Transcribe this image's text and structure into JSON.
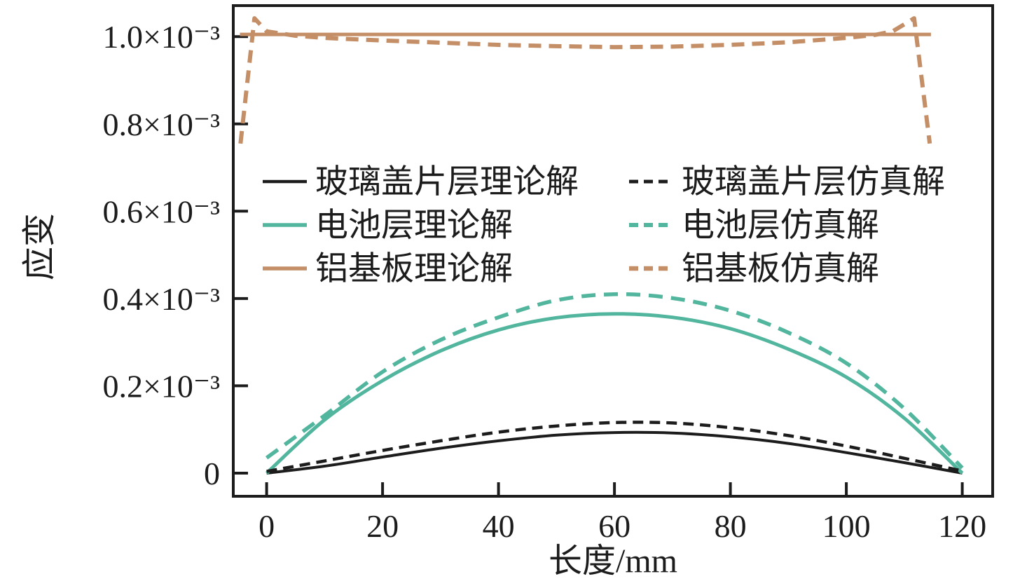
{
  "figure": {
    "background": "#ffffff"
  },
  "chart_data": {
    "type": "line",
    "title": "",
    "xlabel": "长度/mm",
    "ylabel": "应变",
    "grid": false,
    "legend_position": "inside upper-center, two columns",
    "y_value_scale": "values are strain in units of 1e-3",
    "xlim": [
      -5.75,
      125.25
    ],
    "ylim": [
      -0.053,
      1.071
    ],
    "x_ticks": [
      0,
      20,
      40,
      60,
      80,
      100,
      120
    ],
    "y_ticks": [
      {
        "value": 0.0,
        "label": "0"
      },
      {
        "value": 0.2,
        "label": "0.2×10⁻³"
      },
      {
        "value": 0.4,
        "label": "0.4×10⁻³"
      },
      {
        "value": 0.6,
        "label": "0.6×10⁻³"
      },
      {
        "value": 0.8,
        "label": "0.8×10⁻³"
      },
      {
        "value": 1.0,
        "label": "1.0×10⁻³"
      }
    ],
    "series": [
      {
        "id": "glass-theory",
        "label": "玻璃盖片层理论解",
        "color": "#1c1c1c",
        "line": "solid",
        "stroke_width": 4,
        "dasharray": null,
        "smooth": true,
        "points": [
          [
            0,
            0
          ],
          [
            10,
            0.016
          ],
          [
            20,
            0.037
          ],
          [
            30,
            0.057
          ],
          [
            40,
            0.074
          ],
          [
            50,
            0.087
          ],
          [
            60,
            0.093
          ],
          [
            70,
            0.092
          ],
          [
            80,
            0.083
          ],
          [
            90,
            0.068
          ],
          [
            100,
            0.047
          ],
          [
            110,
            0.024
          ],
          [
            120,
            0
          ]
        ]
      },
      {
        "id": "cell-theory",
        "label": "电池层理论解",
        "color": "#52b59d",
        "line": "solid",
        "stroke_width": 5,
        "dasharray": null,
        "smooth": true,
        "points": [
          [
            0,
            0
          ],
          [
            10,
            0.122
          ],
          [
            20,
            0.212
          ],
          [
            30,
            0.28
          ],
          [
            40,
            0.328
          ],
          [
            50,
            0.356
          ],
          [
            60,
            0.365
          ],
          [
            70,
            0.357
          ],
          [
            80,
            0.331
          ],
          [
            90,
            0.284
          ],
          [
            100,
            0.22
          ],
          [
            110,
            0.126
          ],
          [
            120,
            0
          ]
        ]
      },
      {
        "id": "al-theory",
        "label": "铝基板理论解",
        "color": "#c48e67",
        "line": "solid",
        "stroke_width": 5,
        "dasharray": null,
        "smooth": false,
        "points": [
          [
            -4.6,
            1.005
          ],
          [
            114.6,
            1.005
          ]
        ]
      },
      {
        "id": "glass-sim",
        "label": "玻璃盖片层仿真解",
        "color": "#1c1c1c",
        "line": "dashed",
        "stroke_width": 4.5,
        "dasharray": "15 9",
        "smooth": true,
        "points": [
          [
            0,
            0.004
          ],
          [
            10,
            0.028
          ],
          [
            20,
            0.052
          ],
          [
            30,
            0.074
          ],
          [
            40,
            0.094
          ],
          [
            50,
            0.108
          ],
          [
            60,
            0.116
          ],
          [
            70,
            0.115
          ],
          [
            80,
            0.104
          ],
          [
            90,
            0.086
          ],
          [
            100,
            0.062
          ],
          [
            110,
            0.034
          ],
          [
            120,
            0.005
          ]
        ]
      },
      {
        "id": "cell-sim",
        "label": "电池层仿真解",
        "color": "#52b59d",
        "line": "dashed",
        "stroke_width": 5.5,
        "dasharray": "20 12",
        "smooth": true,
        "points": [
          [
            0,
            0.035
          ],
          [
            10,
            0.132
          ],
          [
            20,
            0.232
          ],
          [
            30,
            0.305
          ],
          [
            40,
            0.357
          ],
          [
            50,
            0.396
          ],
          [
            60,
            0.41
          ],
          [
            70,
            0.401
          ],
          [
            80,
            0.372
          ],
          [
            90,
            0.322
          ],
          [
            100,
            0.252
          ],
          [
            110,
            0.148
          ],
          [
            120,
            0.012
          ]
        ]
      },
      {
        "id": "al-sim",
        "label": "铝基板仿真解",
        "color": "#c48e67",
        "line": "dashed",
        "stroke_width": 6,
        "dasharray": "18 11",
        "smooth": false,
        "points": [
          [
            -4.5,
            0.755
          ],
          [
            -2.1,
            1.042
          ],
          [
            0,
            1.012
          ],
          [
            5,
            1.002
          ],
          [
            10,
            0.997
          ],
          [
            20,
            0.991
          ],
          [
            30,
            0.986
          ],
          [
            40,
            0.981
          ],
          [
            50,
            0.978
          ],
          [
            60,
            0.976
          ],
          [
            70,
            0.977
          ],
          [
            80,
            0.981
          ],
          [
            90,
            0.987
          ],
          [
            100,
            0.997
          ],
          [
            105,
            1.004
          ],
          [
            108,
            1.012
          ],
          [
            111.7,
            1.042
          ],
          [
            114.4,
            0.755
          ]
        ]
      }
    ]
  }
}
